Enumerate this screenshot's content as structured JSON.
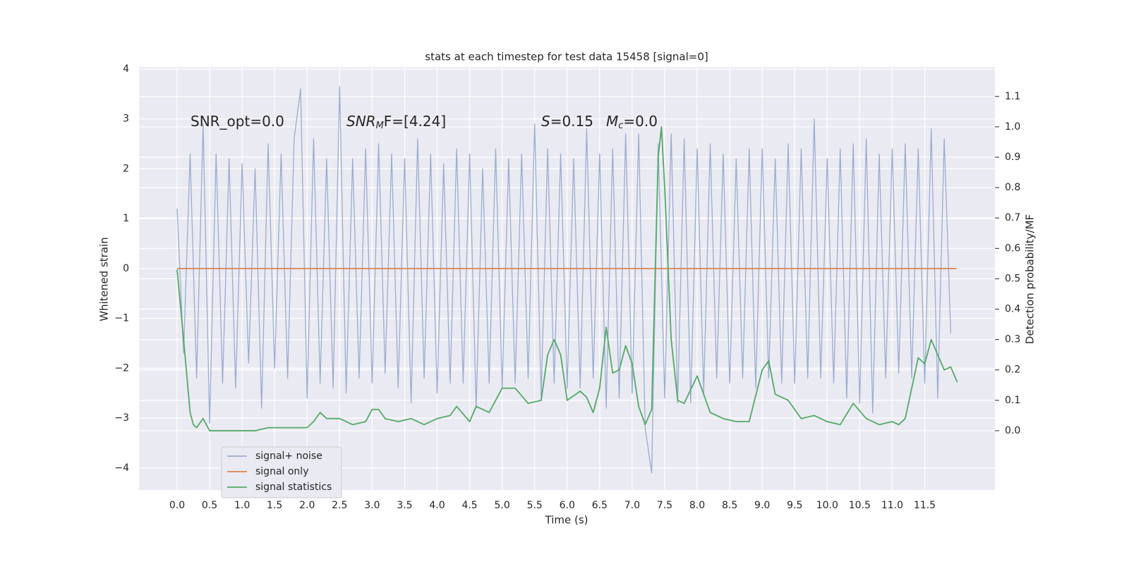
{
  "chart_data": {
    "type": "line",
    "title": "stats at each timestep for test data 15458 [signal=0]",
    "x_label": "Time (s)",
    "y_label": "Whitened strain",
    "y2_label": "Detection probability/MF",
    "annotations": [
      {
        "parts": [
          "SNR_opt=0.0"
        ]
      },
      {
        "parts": [
          "SNR",
          "M",
          "F=[4.24]"
        ]
      },
      {
        "parts": [
          "S",
          "=0.15"
        ]
      },
      {
        "parts": [
          "M",
          "c",
          "=0.0"
        ]
      }
    ],
    "grid": true,
    "legend": "lower left",
    "xlim": [
      -0.586,
      12.58
    ],
    "ylim": [
      -4.44,
      4.04
    ],
    "y2lim": [
      -0.195,
      1.197
    ],
    "xticks": [
      {
        "value": 0,
        "label": "0.0"
      },
      0.5,
      {
        "value": 1,
        "label": "1.0"
      },
      1.5,
      {
        "value": 2,
        "label": "2.0"
      },
      2.5,
      {
        "value": 3,
        "label": "3.0"
      },
      3.5,
      {
        "value": 4,
        "label": "4.0"
      },
      4.5,
      {
        "value": 5,
        "label": "5.0"
      },
      5.5,
      {
        "value": 6,
        "label": "6.0"
      },
      6.5,
      {
        "value": 7,
        "label": "7.0"
      },
      7.5,
      {
        "value": 8,
        "label": "8.0"
      },
      8.5,
      {
        "value": 9,
        "label": "9.0"
      },
      9.5,
      {
        "value": 10,
        "label": "10.0"
      },
      10.5,
      {
        "value": 11,
        "label": "11.0"
      },
      11.5
    ],
    "yticks": [
      {
        "value": -4,
        "label": "−4"
      },
      {
        "value": -3,
        "label": "−3"
      },
      {
        "value": -2,
        "label": "−2"
      },
      {
        "value": -1,
        "label": "−1"
      },
      0,
      1,
      2,
      3,
      4
    ],
    "y2ticks": [
      {
        "value": 0,
        "label": "0.0"
      },
      0.1,
      0.2,
      0.3,
      0.4,
      0.5,
      0.6,
      0.7,
      0.8,
      0.9,
      {
        "value": 1,
        "label": "1.0"
      },
      1.1
    ],
    "series": [
      {
        "name": "signal+ noise",
        "color": "#9cacd0",
        "x": [
          0.0,
          0.1,
          0.2,
          0.3,
          0.4,
          0.5,
          0.6,
          0.7,
          0.8,
          0.9,
          1.0,
          1.1,
          1.2,
          1.3,
          1.4,
          1.5,
          1.6,
          1.7,
          1.8,
          1.9,
          2.0,
          2.1,
          2.2,
          2.3,
          2.4,
          2.5,
          2.6,
          2.7,
          2.8,
          2.9,
          3.0,
          3.1,
          3.2,
          3.3,
          3.4,
          3.5,
          3.6,
          3.7,
          3.8,
          3.9,
          4.0,
          4.1,
          4.2,
          4.3,
          4.4,
          4.5,
          4.6,
          4.7,
          4.8,
          4.9,
          5.0,
          5.1,
          5.2,
          5.3,
          5.4,
          5.5,
          5.6,
          5.7,
          5.8,
          5.9,
          6.0,
          6.1,
          6.2,
          6.3,
          6.4,
          6.5,
          6.6,
          6.7,
          6.8,
          6.9,
          7.0,
          7.1,
          7.2,
          7.3,
          7.4,
          7.5,
          7.6,
          7.7,
          7.8,
          7.9,
          8.0,
          8.1,
          8.2,
          8.3,
          8.4,
          8.5,
          8.6,
          8.7,
          8.8,
          8.9,
          9.0,
          9.1,
          9.2,
          9.3,
          9.4,
          9.5,
          9.6,
          9.7,
          9.8,
          9.9,
          10.0,
          10.1,
          10.2,
          10.3,
          10.4,
          10.5,
          10.6,
          10.7,
          10.8,
          10.9,
          11.0,
          11.1,
          11.2,
          11.3,
          11.4,
          11.5,
          11.6,
          11.7,
          11.8,
          11.9
        ],
        "values": [
          1.2,
          -1.7,
          2.3,
          -2.2,
          2.9,
          -3.1,
          2.3,
          -2.3,
          2.2,
          -2.4,
          2.1,
          -1.9,
          2.0,
          -2.8,
          2.5,
          -2.0,
          2.3,
          -2.2,
          2.6,
          3.6,
          -2.6,
          2.6,
          -2.3,
          2.2,
          -2.4,
          3.65,
          -2.5,
          2.2,
          -2.2,
          2.4,
          -2.3,
          2.5,
          -2.1,
          2.3,
          -2.4,
          2.2,
          -2.7,
          2.6,
          -2.2,
          2.3,
          -2.5,
          2.1,
          -2.3,
          2.4,
          -2.3,
          2.3,
          -2.8,
          2.0,
          -2.3,
          2.4,
          -2.4,
          2.2,
          -2.3,
          2.3,
          -2.2,
          2.9,
          -2.6,
          2.4,
          -2.3,
          2.3,
          -2.4,
          2.2,
          -2.4,
          2.8,
          -2.2,
          2.3,
          -2.8,
          2.4,
          -2.6,
          2.7,
          -2.5,
          2.7,
          -3.2,
          -4.1,
          2.5,
          -2.6,
          2.7,
          -2.7,
          2.6,
          -2.7,
          2.4,
          -2.5,
          2.5,
          -2.2,
          2.3,
          -2.3,
          2.2,
          -2.2,
          2.4,
          -2.4,
          2.4,
          -2.2,
          2.2,
          -2.3,
          2.5,
          -2.3,
          2.4,
          -2.2,
          3.0,
          -2.2,
          2.2,
          -2.3,
          2.4,
          -2.6,
          2.5,
          -2.7,
          2.6,
          -2.9,
          2.3,
          -2.2,
          2.4,
          -2.1,
          2.5,
          -2.2,
          2.4,
          -2.3,
          2.8,
          -2.6,
          2.6,
          -1.3
        ]
      },
      {
        "name": "signal only",
        "color": "#dd8452",
        "x": [
          0.0,
          11.99
        ],
        "values": [
          0,
          0
        ]
      },
      {
        "name": "signal statistics",
        "color": "#55a868",
        "axis": "y2",
        "x": [
          0.0,
          0.1,
          0.2,
          0.25,
          0.3,
          0.4,
          0.5,
          0.6,
          0.8,
          1.0,
          1.2,
          1.4,
          1.6,
          1.8,
          2.0,
          2.1,
          2.2,
          2.3,
          2.5,
          2.7,
          2.9,
          3.0,
          3.1,
          3.2,
          3.4,
          3.6,
          3.8,
          4.0,
          4.2,
          4.3,
          4.5,
          4.6,
          4.8,
          5.0,
          5.2,
          5.4,
          5.6,
          5.7,
          5.8,
          5.9,
          6.0,
          6.2,
          6.3,
          6.4,
          6.5,
          6.6,
          6.7,
          6.8,
          6.9,
          7.0,
          7.1,
          7.2,
          7.3,
          7.4,
          7.45,
          7.5,
          7.6,
          7.7,
          7.8,
          8.0,
          8.2,
          8.4,
          8.6,
          8.8,
          9.0,
          9.1,
          9.2,
          9.4,
          9.6,
          9.8,
          10.0,
          10.2,
          10.4,
          10.6,
          10.8,
          11.0,
          11.1,
          11.2,
          11.4,
          11.5,
          11.6,
          11.8,
          11.9,
          12.0
        ],
        "values": [
          0.53,
          0.3,
          0.06,
          0.02,
          0.01,
          0.04,
          0.0,
          0.0,
          0.0,
          0.0,
          0.0,
          0.01,
          0.01,
          0.01,
          0.01,
          0.03,
          0.06,
          0.04,
          0.04,
          0.02,
          0.03,
          0.07,
          0.07,
          0.04,
          0.03,
          0.04,
          0.02,
          0.04,
          0.05,
          0.08,
          0.03,
          0.08,
          0.06,
          0.14,
          0.14,
          0.09,
          0.1,
          0.25,
          0.3,
          0.25,
          0.1,
          0.13,
          0.11,
          0.06,
          0.14,
          0.34,
          0.19,
          0.2,
          0.28,
          0.22,
          0.08,
          0.02,
          0.07,
          0.9,
          1.0,
          0.8,
          0.3,
          0.1,
          0.09,
          0.18,
          0.06,
          0.04,
          0.03,
          0.03,
          0.2,
          0.23,
          0.12,
          0.1,
          0.04,
          0.05,
          0.03,
          0.02,
          0.09,
          0.04,
          0.02,
          0.03,
          0.02,
          0.04,
          0.24,
          0.22,
          0.3,
          0.2,
          0.21,
          0.16
        ]
      }
    ]
  }
}
